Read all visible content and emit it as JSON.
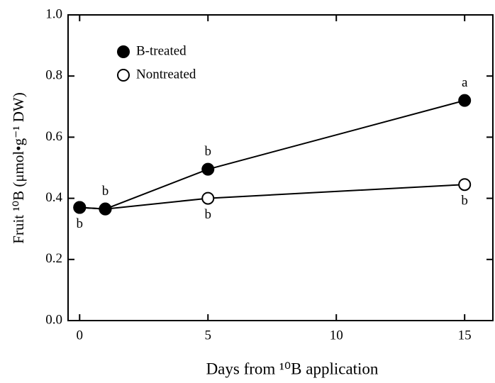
{
  "chart_data": {
    "type": "line",
    "x_label": "Days from ¹⁰B application",
    "y_label": "Fruit ¹⁰B (μmol•g⁻¹ DW)",
    "x": [
      0,
      1,
      5,
      15
    ],
    "series": [
      {
        "name": "B-treated",
        "color": "#000000",
        "filled": true,
        "values": [
          0.37,
          0.365,
          0.495,
          0.72
        ],
        "letters": [
          "b",
          "b",
          "b",
          "a"
        ]
      },
      {
        "name": "Nontreated",
        "color": "#000000",
        "filled": false,
        "values": [
          0.37,
          0.365,
          0.4,
          0.445
        ],
        "letters": [
          null,
          null,
          "b",
          "b"
        ]
      }
    ],
    "xlim": [
      -0.45,
      16.1
    ],
    "ylim": [
      0,
      1
    ],
    "xticks": [
      0,
      5,
      10,
      15
    ],
    "yticks": [
      {
        "value": 0,
        "label": "0.0"
      },
      0.2,
      0.4,
      0.6,
      0.8,
      {
        "value": 1,
        "label": "1.0"
      }
    ],
    "legend": "upper left"
  }
}
